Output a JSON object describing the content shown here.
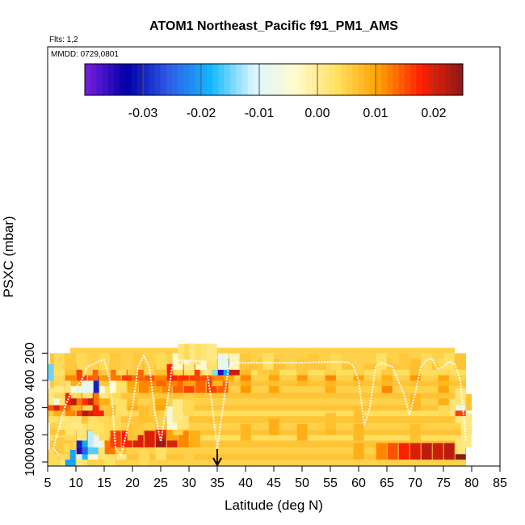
{
  "chart_data": {
    "type": "heatmap",
    "title": "ATOM1 Northeast_Pacific f91_PM1_AMS",
    "flights_label": "Flts: 1,2",
    "date_label": "MMDD: 0729,0801",
    "xlabel": "Latitude (deg N)",
    "ylabel": "PSXC (mbar)",
    "xlim": [
      5,
      85
    ],
    "ylim": [
      1000,
      0
    ],
    "x_ticks": [
      5,
      10,
      15,
      20,
      25,
      30,
      35,
      40,
      45,
      50,
      55,
      60,
      65,
      70,
      75,
      80,
      85
    ],
    "y_ticks": [
      200,
      400,
      600,
      800,
      1000
    ],
    "colorbar": {
      "range": [
        -0.04,
        0.025
      ],
      "ticks": [
        -0.03,
        -0.02,
        -0.01,
        0.0,
        0.01,
        0.02
      ],
      "tick_labels": [
        "-0.03",
        "-0.02",
        "-0.01",
        "0.00",
        "0.01",
        "0.02"
      ],
      "colors": [
        "#7a1fe0",
        "#0000a8",
        "#2f5be8",
        "#12b8ff",
        "#d8f4ff",
        "#fffbd0",
        "#ffe060",
        "#ffa000",
        "#ff2000",
        "#8b1a1a"
      ]
    },
    "background_value": 0.005,
    "latitude_marker": 35,
    "cells": [
      [
        6,
        970,
        0.004
      ],
      [
        8,
        970,
        0.002
      ],
      [
        9,
        970,
        -0.02
      ],
      [
        11,
        970,
        0.002
      ],
      [
        16,
        970,
        0.003
      ],
      [
        22,
        970,
        0.004
      ],
      [
        30,
        970,
        0.005
      ],
      [
        8,
        920,
        0.004
      ],
      [
        11,
        920,
        -0.01
      ],
      [
        12,
        920,
        -0.018
      ],
      [
        13,
        920,
        -0.005
      ],
      [
        15,
        920,
        0.002
      ],
      [
        18,
        920,
        0.001
      ],
      [
        25,
        920,
        0.003
      ],
      [
        60,
        920,
        0.009
      ],
      [
        64,
        920,
        0.012
      ],
      [
        66,
        920,
        0.015
      ],
      [
        68,
        920,
        0.018
      ],
      [
        70,
        920,
        0.02
      ],
      [
        72,
        920,
        0.022
      ],
      [
        74,
        920,
        0.021
      ],
      [
        76,
        920,
        0.022
      ],
      [
        78,
        920,
        0.025
      ],
      [
        7,
        880,
        0.006
      ],
      [
        11,
        880,
        -0.035
      ],
      [
        12,
        880,
        -0.025
      ],
      [
        13,
        880,
        -0.016
      ],
      [
        16,
        880,
        0.013
      ],
      [
        18,
        880,
        0.007
      ],
      [
        78,
        880,
        0.002
      ],
      [
        10,
        830,
        0.005
      ],
      [
        11,
        830,
        -0.03
      ],
      [
        12,
        830,
        -0.02
      ],
      [
        13,
        830,
        -0.012
      ],
      [
        14,
        830,
        -0.008
      ],
      [
        17,
        830,
        0.016
      ],
      [
        19,
        830,
        0.018
      ],
      [
        21,
        830,
        0.02
      ],
      [
        23,
        830,
        0.02
      ],
      [
        25,
        830,
        0.024
      ],
      [
        27,
        830,
        0.02
      ],
      [
        29,
        830,
        0.012
      ],
      [
        31,
        830,
        0.009
      ],
      [
        79,
        830,
        0.001
      ],
      [
        9,
        780,
        0.004
      ],
      [
        11,
        780,
        0.002
      ],
      [
        15,
        780,
        0.004
      ],
      [
        20,
        780,
        0.007
      ],
      [
        25,
        780,
        0.021
      ],
      [
        27,
        780,
        0.01
      ],
      [
        40,
        780,
        0.008
      ],
      [
        50,
        780,
        0.009
      ],
      [
        60,
        780,
        0.008
      ],
      [
        70,
        780,
        0.007
      ],
      [
        9,
        740,
        0.002
      ],
      [
        14,
        740,
        0.003
      ],
      [
        21,
        740,
        0.006
      ],
      [
        25,
        740,
        0.018
      ],
      [
        28,
        740,
        0.005
      ],
      [
        45,
        740,
        0.009
      ],
      [
        55,
        740,
        0.008
      ],
      [
        79,
        740,
        0.002
      ],
      [
        8,
        700,
        0.002
      ],
      [
        10,
        700,
        0.001
      ],
      [
        13,
        700,
        0.003
      ],
      [
        17,
        700,
        0.004
      ],
      [
        25,
        700,
        0.005
      ],
      [
        27,
        700,
        -0.004
      ],
      [
        29,
        700,
        0.002
      ],
      [
        55,
        700,
        0.007
      ],
      [
        79,
        700,
        0.001
      ],
      [
        6,
        650,
        0.003
      ],
      [
        10,
        650,
        0.002
      ],
      [
        15,
        650,
        0.004
      ],
      [
        22,
        650,
        0.007
      ],
      [
        27,
        650,
        -0.006
      ],
      [
        28,
        650,
        0.001
      ],
      [
        60,
        650,
        0.007
      ],
      [
        78,
        650,
        0.001
      ],
      [
        6,
        600,
        0.006
      ],
      [
        7,
        600,
        0.009
      ],
      [
        9,
        600,
        0.012
      ],
      [
        11,
        600,
        0.016
      ],
      [
        12,
        600,
        0.023
      ],
      [
        13,
        600,
        0.02
      ],
      [
        14,
        600,
        0.018
      ],
      [
        16,
        600,
        0.007
      ],
      [
        18,
        600,
        0.003
      ],
      [
        20,
        600,
        0.004
      ],
      [
        24,
        600,
        0.006
      ],
      [
        28,
        600,
        0.001
      ],
      [
        30,
        600,
        0.004
      ],
      [
        75,
        600,
        0.004
      ],
      [
        77,
        600,
        0.002
      ],
      [
        78,
        600,
        0.016
      ],
      [
        6,
        560,
        0.015
      ],
      [
        7,
        560,
        0.02
      ],
      [
        8,
        560,
        0.014
      ],
      [
        10,
        560,
        0.008
      ],
      [
        12,
        560,
        0.004
      ],
      [
        15,
        560,
        0.006
      ],
      [
        20,
        560,
        0.009
      ],
      [
        25,
        560,
        0.01
      ],
      [
        70,
        560,
        0.008
      ],
      [
        78,
        560,
        -0.008
      ],
      [
        6,
        520,
        0.001
      ],
      [
        7,
        520,
        -0.007
      ],
      [
        8,
        520,
        0.002
      ],
      [
        9,
        520,
        0.018
      ],
      [
        10,
        520,
        0.022
      ],
      [
        11,
        520,
        0.013
      ],
      [
        12,
        520,
        0.017
      ],
      [
        13,
        520,
        0.021
      ],
      [
        14,
        520,
        0.013
      ],
      [
        15,
        520,
        0.009
      ],
      [
        17,
        520,
        0.003
      ],
      [
        20,
        520,
        0.007
      ],
      [
        25,
        520,
        0.009
      ],
      [
        75,
        520,
        0.009
      ],
      [
        78,
        520,
        0.002
      ],
      [
        7,
        470,
        0.004
      ],
      [
        10,
        470,
        0.004
      ],
      [
        12,
        470,
        0.002
      ],
      [
        15,
        470,
        0.001
      ],
      [
        17,
        470,
        0.004
      ],
      [
        20,
        470,
        0.006
      ],
      [
        25,
        470,
        0.006
      ],
      [
        30,
        470,
        0.005
      ],
      [
        75,
        470,
        0.006
      ],
      [
        7,
        430,
        0.001
      ],
      [
        9,
        430,
        0.002
      ],
      [
        10,
        430,
        -0.005
      ],
      [
        11,
        430,
        -0.008
      ],
      [
        12,
        430,
        -0.009
      ],
      [
        13,
        430,
        -0.008
      ],
      [
        14,
        430,
        -0.03
      ],
      [
        15,
        430,
        -0.005
      ],
      [
        16,
        430,
        0.002
      ],
      [
        17,
        430,
        -0.004
      ],
      [
        18,
        430,
        0.003
      ],
      [
        20,
        430,
        0.009
      ],
      [
        22,
        430,
        0.012
      ],
      [
        24,
        430,
        0.01
      ],
      [
        26,
        430,
        0.012
      ],
      [
        28,
        430,
        0.014
      ],
      [
        30,
        430,
        0.016
      ],
      [
        32,
        430,
        0.014
      ],
      [
        34,
        430,
        0.016
      ],
      [
        36,
        430,
        0.014
      ],
      [
        40,
        430,
        0.011
      ],
      [
        45,
        430,
        0.01
      ],
      [
        55,
        430,
        0.009
      ],
      [
        65,
        430,
        0.012
      ],
      [
        75,
        430,
        0.01
      ],
      [
        7,
        380,
        0.004
      ],
      [
        10,
        380,
        0.009
      ],
      [
        15,
        380,
        0.006
      ],
      [
        20,
        380,
        0.01
      ],
      [
        23,
        380,
        0.012
      ],
      [
        25,
        380,
        0.014
      ],
      [
        27,
        380,
        0.012
      ],
      [
        30,
        380,
        0.01
      ],
      [
        35,
        380,
        0.008
      ],
      [
        40,
        380,
        0.009
      ],
      [
        45,
        380,
        0.007
      ],
      [
        50,
        380,
        0.008
      ],
      [
        55,
        380,
        0.008
      ],
      [
        60,
        380,
        0.007
      ],
      [
        65,
        380,
        0.008
      ],
      [
        70,
        380,
        0.007
      ],
      [
        75,
        380,
        0.008
      ],
      [
        6,
        340,
        -0.015
      ],
      [
        7,
        340,
        0.004
      ],
      [
        9,
        340,
        0.012
      ],
      [
        11,
        340,
        0.016
      ],
      [
        13,
        340,
        0.014
      ],
      [
        15,
        340,
        0.011
      ],
      [
        17,
        340,
        0.013
      ],
      [
        19,
        340,
        0.016
      ],
      [
        21,
        340,
        0.014
      ],
      [
        23,
        340,
        0.015
      ],
      [
        25,
        340,
        0.012
      ],
      [
        27,
        340,
        0.018
      ],
      [
        29,
        340,
        0.017
      ],
      [
        31,
        340,
        0.016
      ],
      [
        33,
        340,
        0.015
      ],
      [
        35,
        340,
        0.012
      ],
      [
        37,
        340,
        0.01
      ],
      [
        40,
        340,
        0.012
      ],
      [
        45,
        340,
        0.01
      ],
      [
        50,
        340,
        0.011
      ],
      [
        55,
        340,
        0.012
      ],
      [
        60,
        340,
        0.01
      ],
      [
        65,
        340,
        0.009
      ],
      [
        70,
        340,
        0.011
      ],
      [
        75,
        340,
        0.01
      ],
      [
        7,
        300,
        0.003
      ],
      [
        9,
        300,
        0.007
      ],
      [
        12,
        300,
        0.005
      ],
      [
        15,
        300,
        0.006
      ],
      [
        18,
        300,
        0.004
      ],
      [
        20,
        300,
        0.006
      ],
      [
        23,
        300,
        0.005
      ],
      [
        25,
        300,
        0.007
      ],
      [
        28,
        300,
        0.004
      ],
      [
        30,
        300,
        0.003
      ],
      [
        33,
        300,
        0.002
      ],
      [
        35,
        300,
        -0.014
      ],
      [
        36,
        300,
        -0.035
      ],
      [
        37,
        300,
        -0.02
      ],
      [
        38,
        300,
        0.021
      ],
      [
        40,
        300,
        0.008
      ],
      [
        43,
        300,
        0.006
      ],
      [
        45,
        300,
        0.007
      ],
      [
        50,
        300,
        0.006
      ],
      [
        55,
        300,
        0.005
      ],
      [
        60,
        300,
        0.005
      ],
      [
        65,
        300,
        0.006
      ],
      [
        70,
        300,
        0.007
      ],
      [
        75,
        300,
        0.004
      ],
      [
        7,
        260,
        0.004
      ],
      [
        9,
        260,
        0.006
      ],
      [
        11,
        260,
        0.004
      ],
      [
        13,
        260,
        0.005
      ],
      [
        15,
        260,
        0.004
      ],
      [
        17,
        260,
        0.006
      ],
      [
        19,
        260,
        0.005
      ],
      [
        21,
        260,
        0.006
      ],
      [
        25,
        260,
        0.004
      ],
      [
        28,
        260,
        -0.004
      ],
      [
        30,
        260,
        0.001
      ],
      [
        32,
        260,
        -0.003
      ],
      [
        34,
        260,
        0.003
      ],
      [
        36,
        260,
        -0.008
      ],
      [
        38,
        260,
        -0.002
      ],
      [
        40,
        260,
        0.006
      ],
      [
        44,
        260,
        0.003
      ],
      [
        48,
        260,
        0.005
      ],
      [
        52,
        260,
        0.006
      ],
      [
        56,
        260,
        0.004
      ],
      [
        60,
        260,
        0.005
      ],
      [
        64,
        260,
        0.003
      ],
      [
        68,
        260,
        0.006
      ],
      [
        72,
        260,
        0.004
      ],
      [
        76,
        260,
        0.003
      ],
      [
        29,
        220,
        0.001
      ],
      [
        30,
        220,
        -0.006
      ],
      [
        31,
        220,
        0.001
      ],
      [
        32,
        220,
        0.003
      ],
      [
        33,
        220,
        -0.004
      ],
      [
        34,
        220,
        0.002
      ],
      [
        29,
        190,
        0.002
      ],
      [
        30,
        190,
        0.004
      ],
      [
        31,
        190,
        0.001
      ],
      [
        32,
        190,
        0.003
      ],
      [
        33,
        190,
        0.002
      ],
      [
        34,
        190,
        0.001
      ]
    ],
    "flight_track": [
      [
        7,
        950
      ],
      [
        6,
        900
      ],
      [
        8,
        600
      ],
      [
        9,
        500
      ],
      [
        11,
        400
      ],
      [
        12,
        300
      ],
      [
        14,
        260
      ],
      [
        15,
        250
      ],
      [
        16,
        400
      ],
      [
        16.5,
        600
      ],
      [
        17,
        900
      ],
      [
        18,
        950
      ],
      [
        20,
        600
      ],
      [
        21,
        300
      ],
      [
        22,
        215
      ],
      [
        23,
        300
      ],
      [
        24,
        650
      ],
      [
        25,
        850
      ],
      [
        26,
        600
      ],
      [
        27,
        300
      ],
      [
        28,
        250
      ],
      [
        30,
        255
      ],
      [
        32,
        260
      ],
      [
        33,
        300
      ],
      [
        34,
        550
      ],
      [
        35,
        900
      ],
      [
        36,
        600
      ],
      [
        37,
        300
      ],
      [
        38,
        270
      ],
      [
        42,
        270
      ],
      [
        46,
        270
      ],
      [
        50,
        270
      ],
      [
        54,
        265
      ],
      [
        58,
        265
      ],
      [
        59,
        290
      ],
      [
        60,
        400
      ],
      [
        61,
        730
      ],
      [
        62,
        600
      ],
      [
        63,
        300
      ],
      [
        64,
        270
      ],
      [
        66,
        300
      ],
      [
        68,
        500
      ],
      [
        69,
        650
      ],
      [
        70,
        500
      ],
      [
        71,
        300
      ],
      [
        72,
        250
      ],
      [
        73,
        240
      ],
      [
        74,
        320
      ],
      [
        75,
        300
      ],
      [
        76,
        260
      ],
      [
        77,
        280
      ],
      [
        78,
        400
      ],
      [
        79,
        850
      ]
    ]
  }
}
